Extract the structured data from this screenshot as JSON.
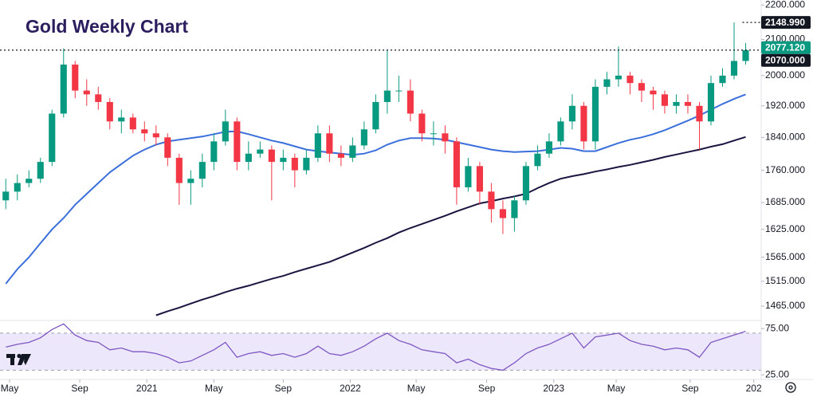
{
  "chart_data": [
    {
      "type": "candlestick",
      "title": "Gold Weekly Chart",
      "log_scale": true,
      "up_color": "#089981",
      "down_color": "#f23645",
      "ylim": [
        1440,
        2215
      ],
      "yticks": [
        {
          "value": 2200,
          "label": "2200.000"
        },
        {
          "value": 2100,
          "label": "2100.000"
        },
        {
          "value": 2000,
          "label": "2000.000"
        },
        {
          "value": 1920,
          "label": "1920.000"
        },
        {
          "value": 1840,
          "label": "1840.000"
        },
        {
          "value": 1760,
          "label": "1760.000"
        },
        {
          "value": 1685,
          "label": "1685.000"
        },
        {
          "value": 1625,
          "label": "1625.000"
        },
        {
          "value": 1565,
          "label": "1565.000"
        },
        {
          "value": 1515,
          "label": "1515.000"
        },
        {
          "value": 1465,
          "label": "1465.000"
        }
      ],
      "xlim": [
        -0.5,
        65
      ],
      "xticks": [
        {
          "value": 0.33,
          "label": "May"
        },
        {
          "value": 6.4,
          "label": "Sep"
        },
        {
          "value": 12.2,
          "label": "2021"
        },
        {
          "value": 18,
          "label": "May"
        },
        {
          "value": 24,
          "label": "Sep"
        },
        {
          "value": 29.8,
          "label": "2022"
        },
        {
          "value": 35.5,
          "label": "May"
        },
        {
          "value": 41.6,
          "label": "Sep"
        },
        {
          "value": 47.4,
          "label": "2023"
        },
        {
          "value": 52.8,
          "label": "May"
        },
        {
          "value": 59.2,
          "label": "Sep"
        },
        {
          "value": 64.7,
          "label": "202"
        }
      ],
      "open": [
        1690,
        1710,
        1730,
        1740,
        1780,
        1900,
        2030,
        1960,
        1950,
        1930,
        1880,
        1890,
        1860,
        1850,
        1840,
        1790,
        1730,
        1740,
        1780,
        1830,
        1880,
        1780,
        1800,
        1810,
        1780,
        1790,
        1760,
        1790,
        1850,
        1800,
        1790,
        1820,
        1860,
        1930,
        1960,
        1960,
        1900,
        1850,
        1850,
        1830,
        1720,
        1770,
        1710,
        1670,
        1650,
        1690,
        1770,
        1800,
        1830,
        1880,
        1920,
        1830,
        1970,
        1990,
        2000,
        1980,
        1960,
        1950,
        1920,
        1930,
        1920,
        1880,
        1980,
        2000,
        2040
      ],
      "high": [
        1740,
        1750,
        1760,
        1790,
        1910,
        2075,
        2040,
        1990,
        1970,
        1940,
        1910,
        1900,
        1880,
        1870,
        1850,
        1800,
        1760,
        1800,
        1850,
        1910,
        1890,
        1830,
        1830,
        1820,
        1810,
        1800,
        1810,
        1870,
        1870,
        1820,
        1840,
        1880,
        1950,
        2070,
        2000,
        1990,
        1910,
        1880,
        1870,
        1840,
        1790,
        1780,
        1730,
        1690,
        1700,
        1780,
        1820,
        1850,
        1890,
        1950,
        1930,
        1990,
        2010,
        2080,
        2010,
        1990,
        1970,
        1960,
        1950,
        1950,
        1930,
        2000,
        2020,
        2149,
        2090
      ],
      "low": [
        1670,
        1690,
        1720,
        1730,
        1770,
        1890,
        1940,
        1920,
        1910,
        1860,
        1850,
        1850,
        1830,
        1820,
        1770,
        1680,
        1680,
        1720,
        1760,
        1820,
        1760,
        1760,
        1790,
        1690,
        1760,
        1720,
        1750,
        1780,
        1780,
        1770,
        1780,
        1810,
        1850,
        1900,
        1930,
        1880,
        1830,
        1820,
        1800,
        1680,
        1710,
        1680,
        1640,
        1615,
        1620,
        1680,
        1760,
        1790,
        1820,
        1860,
        1810,
        1810,
        1950,
        1970,
        1950,
        1930,
        1910,
        1900,
        1900,
        1900,
        1810,
        1870,
        1970,
        1990,
        2030
      ],
      "close": [
        1710,
        1730,
        1740,
        1780,
        1900,
        2030,
        1960,
        1950,
        1930,
        1880,
        1890,
        1860,
        1850,
        1840,
        1790,
        1730,
        1740,
        1780,
        1830,
        1880,
        1780,
        1800,
        1810,
        1780,
        1790,
        1760,
        1790,
        1850,
        1800,
        1790,
        1820,
        1860,
        1930,
        1960,
        1960,
        1900,
        1850,
        1850,
        1830,
        1720,
        1770,
        1710,
        1670,
        1650,
        1690,
        1770,
        1800,
        1830,
        1880,
        1920,
        1830,
        1970,
        1990,
        2000,
        1980,
        1960,
        1950,
        1920,
        1930,
        1920,
        1880,
        1980,
        2000,
        2040,
        2070
      ],
      "overlays": [
        {
          "color": "#3b6fdc",
          "values": [
            1510,
            1540,
            1565,
            1595,
            1625,
            1650,
            1680,
            1705,
            1730,
            1755,
            1775,
            1795,
            1810,
            1822,
            1830,
            1834,
            1838,
            1842,
            1848,
            1854,
            1855,
            1848,
            1840,
            1832,
            1826,
            1818,
            1810,
            1806,
            1803,
            1800,
            1797,
            1800,
            1808,
            1822,
            1832,
            1838,
            1838,
            1837,
            1834,
            1828,
            1822,
            1816,
            1810,
            1806,
            1804,
            1805,
            1806,
            1810,
            1814,
            1812,
            1806,
            1806,
            1816,
            1826,
            1834,
            1840,
            1848,
            1858,
            1870,
            1882,
            1895,
            1910,
            1925,
            1938,
            1950
          ]
        },
        {
          "color": "#1c1440",
          "values": [
            null,
            null,
            null,
            null,
            null,
            null,
            null,
            null,
            null,
            null,
            null,
            null,
            null,
            1447,
            1455,
            1462,
            1470,
            1478,
            1485,
            1493,
            1500,
            1506,
            1513,
            1520,
            1526,
            1534,
            1541,
            1548,
            1555,
            1565,
            1575,
            1585,
            1596,
            1606,
            1618,
            1628,
            1637,
            1646,
            1655,
            1665,
            1674,
            1683,
            1688,
            1694,
            1699,
            1705,
            1718,
            1730,
            1740,
            1746,
            1751,
            1757,
            1762,
            1768,
            1773,
            1779,
            1785,
            1792,
            1798,
            1804,
            1810,
            1817,
            1823,
            1832,
            1841
          ]
        }
      ],
      "price_labels": [
        {
          "value": 2148.99,
          "label": "2148.990",
          "color": "#131722",
          "line": "short"
        },
        {
          "value": 2077.12,
          "label": "2077.120",
          "color": "#089981"
        },
        {
          "value": 2070,
          "label": "2070.000",
          "color": "#131722",
          "line": "full"
        }
      ]
    },
    {
      "type": "line",
      "color": "#7e57c2",
      "band": [
        30,
        70
      ],
      "band_color": "#ede7fb",
      "ylim": [
        20,
        82
      ],
      "yticks": [
        {
          "value": 75,
          "label": "75.00"
        },
        {
          "value": 25,
          "label": "25.00"
        }
      ],
      "values": [
        55,
        58,
        60,
        65,
        74,
        80,
        68,
        62,
        60,
        52,
        54,
        50,
        50,
        48,
        44,
        38,
        40,
        46,
        52,
        60,
        44,
        48,
        50,
        46,
        48,
        44,
        48,
        56,
        48,
        46,
        50,
        56,
        64,
        70,
        62,
        58,
        52,
        50,
        48,
        38,
        42,
        36,
        32,
        30,
        38,
        48,
        54,
        58,
        64,
        70,
        54,
        66,
        68,
        70,
        62,
        58,
        56,
        52,
        54,
        52,
        44,
        60,
        64,
        68,
        72
      ]
    }
  ]
}
